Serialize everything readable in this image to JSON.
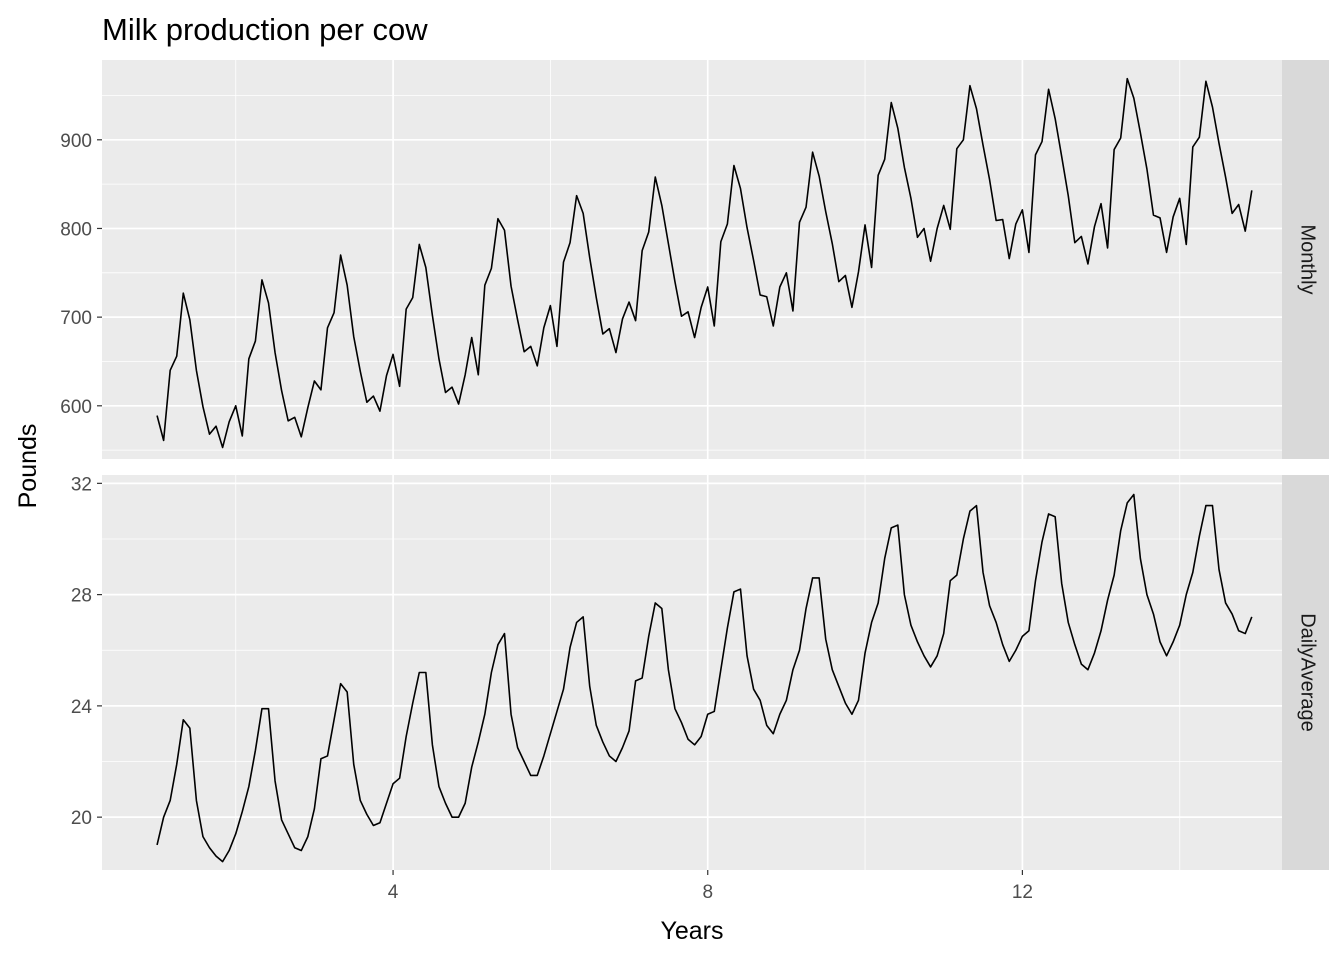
{
  "chart_data": {
    "type": "line",
    "title": "Milk production per cow",
    "xlabel": "Years",
    "ylabel": "Pounds",
    "x_ticks": [
      4,
      8,
      12
    ],
    "x_start": 1,
    "x_step": 0.08333,
    "grid": true,
    "facets": [
      {
        "label": "Monthly",
        "ylim": [
          540,
          990
        ],
        "y_ticks": [
          600,
          700,
          800,
          900
        ],
        "values": [
          589,
          561,
          640,
          656,
          727,
          697,
          640,
          599,
          568,
          577,
          553,
          582,
          600,
          566,
          653,
          673,
          742,
          716,
          660,
          617,
          583,
          587,
          565,
          598,
          628,
          618,
          688,
          705,
          770,
          736,
          678,
          639,
          604,
          611,
          594,
          634,
          658,
          622,
          709,
          722,
          782,
          756,
          702,
          653,
          615,
          621,
          602,
          635,
          677,
          635,
          736,
          755,
          811,
          798,
          735,
          697,
          661,
          667,
          645,
          688,
          713,
          667,
          762,
          784,
          837,
          817,
          767,
          722,
          681,
          687,
          660,
          698,
          717,
          696,
          775,
          796,
          858,
          826,
          783,
          740,
          701,
          706,
          677,
          711,
          734,
          690,
          785,
          805,
          871,
          845,
          801,
          764,
          725,
          723,
          690,
          734,
          750,
          707,
          807,
          824,
          886,
          859,
          819,
          783,
          740,
          747,
          711,
          751,
          804,
          756,
          860,
          878,
          942,
          913,
          869,
          834,
          790,
          800,
          763,
          800,
          826,
          799,
          890,
          900,
          961,
          935,
          894,
          855,
          809,
          810,
          766,
          805,
          821,
          773,
          883,
          898,
          957,
          924,
          881,
          837,
          784,
          791,
          760,
          802,
          828,
          778,
          889,
          902,
          969,
          947,
          908,
          867,
          815,
          812,
          773,
          813,
          834,
          782,
          892,
          903,
          966,
          937,
          896,
          858,
          817,
          827,
          797,
          843
        ]
      },
      {
        "label": "DailyAverage",
        "ylim": [
          18.1,
          32.3
        ],
        "y_ticks": [
          20,
          24,
          28,
          32
        ],
        "values": [
          19.0,
          20.0,
          20.6,
          21.9,
          23.5,
          23.2,
          20.6,
          19.3,
          18.9,
          18.6,
          18.4,
          18.8,
          19.4,
          20.2,
          21.1,
          22.4,
          23.9,
          23.9,
          21.3,
          19.9,
          19.4,
          18.9,
          18.8,
          19.3,
          20.3,
          22.1,
          22.2,
          23.5,
          24.8,
          24.5,
          21.9,
          20.6,
          20.1,
          19.7,
          19.8,
          20.5,
          21.2,
          21.4,
          22.9,
          24.1,
          25.2,
          25.2,
          22.6,
          21.1,
          20.5,
          20.0,
          20.0,
          20.5,
          21.8,
          22.7,
          23.7,
          25.2,
          26.2,
          26.6,
          23.7,
          22.5,
          22.0,
          21.5,
          21.5,
          22.2,
          23.0,
          23.8,
          24.6,
          26.1,
          27.0,
          27.2,
          24.7,
          23.3,
          22.7,
          22.2,
          22.0,
          22.5,
          23.1,
          24.9,
          25.0,
          26.5,
          27.7,
          27.5,
          25.3,
          23.9,
          23.4,
          22.8,
          22.6,
          22.9,
          23.7,
          23.8,
          25.3,
          26.8,
          28.1,
          28.2,
          25.8,
          24.6,
          24.2,
          23.3,
          23.0,
          23.7,
          24.2,
          25.3,
          26.0,
          27.5,
          28.6,
          28.6,
          26.4,
          25.3,
          24.7,
          24.1,
          23.7,
          24.2,
          25.9,
          27.0,
          27.7,
          29.3,
          30.4,
          30.5,
          28.0,
          26.9,
          26.3,
          25.8,
          25.4,
          25.8,
          26.6,
          28.5,
          28.7,
          30.0,
          31.0,
          31.2,
          28.8,
          27.6,
          27.0,
          26.2,
          25.6,
          26.0,
          26.5,
          26.7,
          28.5,
          29.9,
          30.9,
          30.8,
          28.4,
          27.0,
          26.2,
          25.5,
          25.3,
          25.9,
          26.7,
          27.8,
          28.7,
          30.3,
          31.3,
          31.6,
          29.3,
          28.0,
          27.3,
          26.3,
          25.8,
          26.3,
          26.9,
          28.0,
          28.8,
          30.1,
          31.2,
          31.2,
          28.9,
          27.7,
          27.3,
          26.7,
          26.6,
          27.2
        ]
      }
    ]
  }
}
